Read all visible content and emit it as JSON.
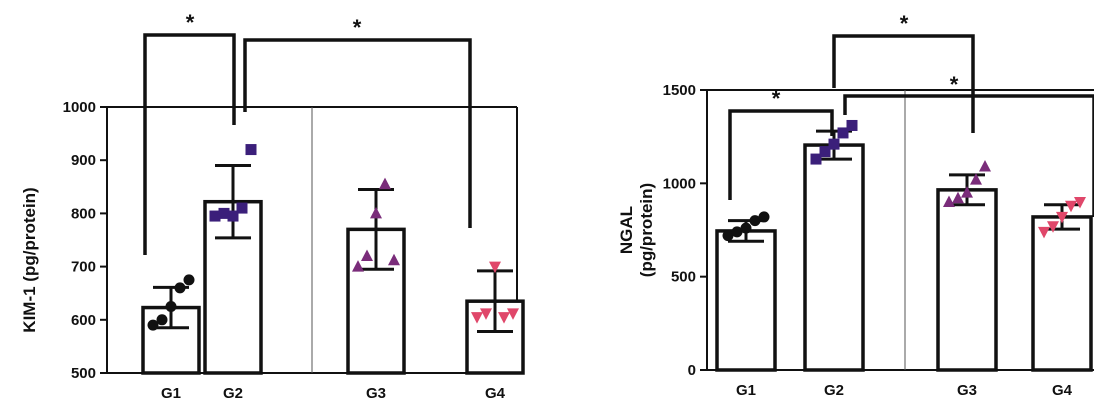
{
  "chart_data": [
    {
      "type": "bar",
      "ylabel": "KIM-1 (pg/protein)",
      "ylim": [
        500,
        1000
      ],
      "yticks": [
        500,
        600,
        700,
        800,
        900,
        1000
      ],
      "categories": [
        "G1",
        "G2",
        "G3",
        "G4"
      ],
      "values": [
        623,
        822,
        770,
        635
      ],
      "error": [
        38,
        68,
        75,
        57
      ],
      "points": [
        [
          590,
          600,
          625,
          660,
          675
        ],
        [
          795,
          800,
          795,
          810,
          920
        ],
        [
          700,
          720,
          800,
          855,
          712
        ],
        [
          605,
          612,
          700,
          605,
          612
        ]
      ],
      "markers": [
        "circle",
        "square",
        "triangle-up",
        "triangle-down"
      ],
      "colors": [
        "#111111",
        "#3b1f7a",
        "#7a2c7a",
        "#e0476a"
      ],
      "significance": [
        {
          "from": "G1",
          "to": "G2",
          "label": "*"
        },
        {
          "from": "G2",
          "to": "G4",
          "label": "*"
        }
      ]
    },
    {
      "type": "bar",
      "ylabel": [
        "NGAL",
        "(pg/protein)"
      ],
      "ylim": [
        0,
        1500
      ],
      "yticks": [
        0,
        500,
        1000,
        1500
      ],
      "categories": [
        "G1",
        "G2",
        "G3",
        "G4"
      ],
      "values": [
        745,
        1205,
        965,
        820
      ],
      "error": [
        55,
        75,
        80,
        65
      ],
      "points": [
        [
          720,
          740,
          760,
          800,
          820
        ],
        [
          1130,
          1170,
          1210,
          1270,
          1310
        ],
        [
          900,
          920,
          950,
          1020,
          1090
        ],
        [
          740,
          770,
          820,
          880,
          900
        ]
      ],
      "markers": [
        "circle",
        "square",
        "triangle-up",
        "triangle-down"
      ],
      "colors": [
        "#111111",
        "#3b1f7a",
        "#7a2c7a",
        "#e0476a"
      ],
      "significance": [
        {
          "from": "G1",
          "to": "G2",
          "label": "*"
        },
        {
          "from": "G2",
          "to": "G3",
          "label": "*"
        },
        {
          "from": "G2",
          "to": "G4",
          "label": "*"
        }
      ]
    }
  ]
}
